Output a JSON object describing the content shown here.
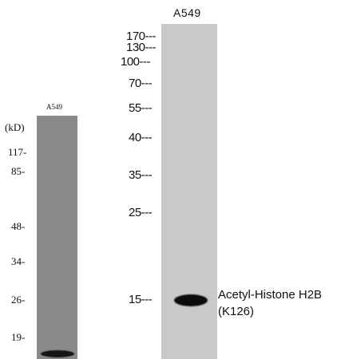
{
  "left_blot": {
    "lane_label": "A549",
    "unit_label": "(kD)",
    "markers": [
      "117-",
      "85-",
      "48-",
      "34-",
      "26-",
      "19-"
    ],
    "lane_color": "#8a8a8a"
  },
  "right_blot": {
    "lane_label": "A549",
    "markers": [
      "170---",
      "130---",
      "100---",
      "70---",
      "55---",
      "40---",
      "35---",
      "25---",
      "15---"
    ],
    "lane_color": "#c9c9c9",
    "band_label_line1": "Acetyl-Histone H2B",
    "band_label_line2": "(K126)"
  }
}
